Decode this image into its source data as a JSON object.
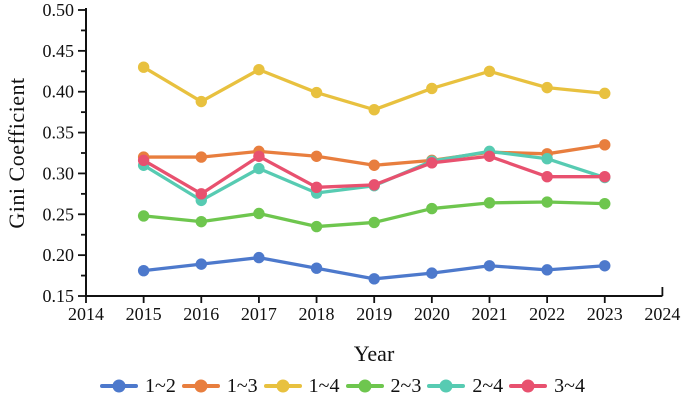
{
  "chart_data": {
    "type": "line",
    "xlabel": "Year",
    "ylabel": "Gini Coefficient",
    "xlim": [
      2014,
      2024
    ],
    "ylim": [
      0.15,
      0.5
    ],
    "x_tick_labels": [
      "2014",
      "2015",
      "2016",
      "2017",
      "2018",
      "2019",
      "2020",
      "2021",
      "2022",
      "2023",
      "2024"
    ],
    "y_tick_labels": [
      "0.15",
      "0.20",
      "0.25",
      "0.30",
      "0.35",
      "0.40",
      "0.45",
      "0.50"
    ],
    "y_major_step": 0.05,
    "y_minor_step": 0.025,
    "grid": false,
    "legend_position": "bottom",
    "x": [
      2015,
      2016,
      2017,
      2018,
      2019,
      2020,
      2021,
      2022,
      2023
    ],
    "series": [
      {
        "name": "1~2",
        "color": "#4d79cc",
        "values": [
          0.181,
          0.189,
          0.197,
          0.184,
          0.171,
          0.178,
          0.187,
          0.182,
          0.187
        ]
      },
      {
        "name": "1~3",
        "color": "#e87e3e",
        "values": [
          0.32,
          0.32,
          0.327,
          0.321,
          0.31,
          0.316,
          0.326,
          0.324,
          0.335
        ]
      },
      {
        "name": "1~4",
        "color": "#e8c13f",
        "values": [
          0.43,
          0.388,
          0.427,
          0.399,
          0.378,
          0.404,
          0.425,
          0.405,
          0.398
        ]
      },
      {
        "name": "2~3",
        "color": "#6ec64e",
        "values": [
          0.248,
          0.241,
          0.251,
          0.235,
          0.24,
          0.257,
          0.264,
          0.265,
          0.263
        ]
      },
      {
        "name": "2~4",
        "color": "#57cbb2",
        "values": [
          0.31,
          0.267,
          0.306,
          0.276,
          0.285,
          0.315,
          0.327,
          0.318,
          0.295
        ]
      },
      {
        "name": "3~4",
        "color": "#e8516f",
        "values": [
          0.316,
          0.275,
          0.321,
          0.283,
          0.286,
          0.313,
          0.321,
          0.296,
          0.296
        ]
      }
    ],
    "axis_color": "#111111"
  }
}
